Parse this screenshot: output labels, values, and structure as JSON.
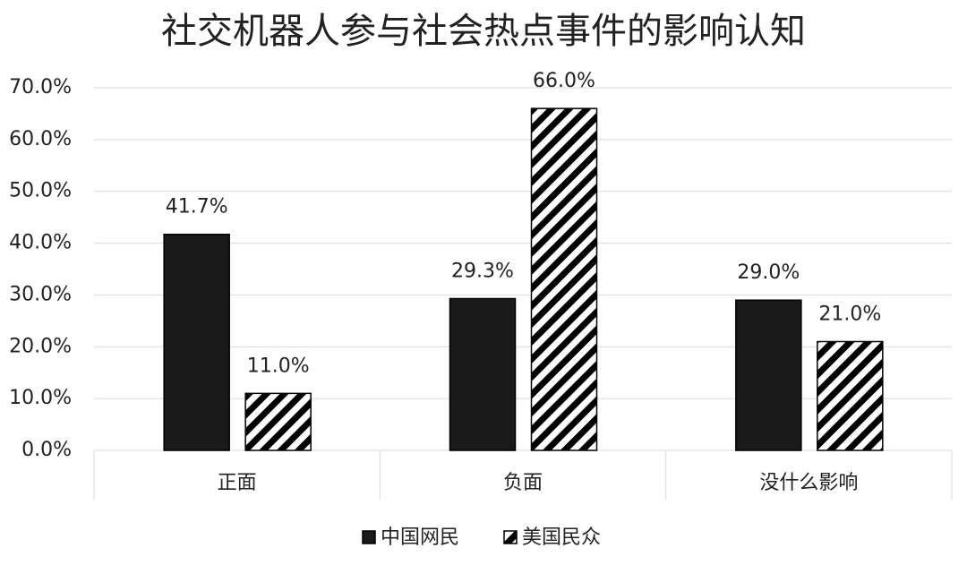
{
  "chart_data": {
    "type": "bar",
    "title": "社交机器人参与社会热点事件的影响认知",
    "categories": [
      "正面",
      "负面",
      "没什么影响"
    ],
    "series": [
      {
        "name": "中国网民",
        "color": "#1a1a1a",
        "hatch": false,
        "values": [
          41.7,
          29.3,
          29.0
        ],
        "value_labels": [
          "41.7%",
          "29.3%",
          "29.0%"
        ]
      },
      {
        "name": "美国民众",
        "color": "#000000",
        "hatch": true,
        "values": [
          11.0,
          66.0,
          21.0
        ],
        "value_labels": [
          "11.0%",
          "66.0%",
          "21.0%"
        ]
      }
    ],
    "ylim": [
      0,
      70
    ],
    "yticks": [
      {
        "value": 0,
        "label": "0.0%"
      },
      {
        "value": 10,
        "label": "10.0%"
      },
      {
        "value": 20,
        "label": "20.0%"
      },
      {
        "value": 30,
        "label": "30.0%"
      },
      {
        "value": 40,
        "label": "40.0%"
      },
      {
        "value": 50,
        "label": "50.0%"
      },
      {
        "value": 60,
        "label": "60.0%"
      },
      {
        "value": 70,
        "label": "70.0%"
      }
    ],
    "grid": true,
    "legend": "bottom"
  }
}
